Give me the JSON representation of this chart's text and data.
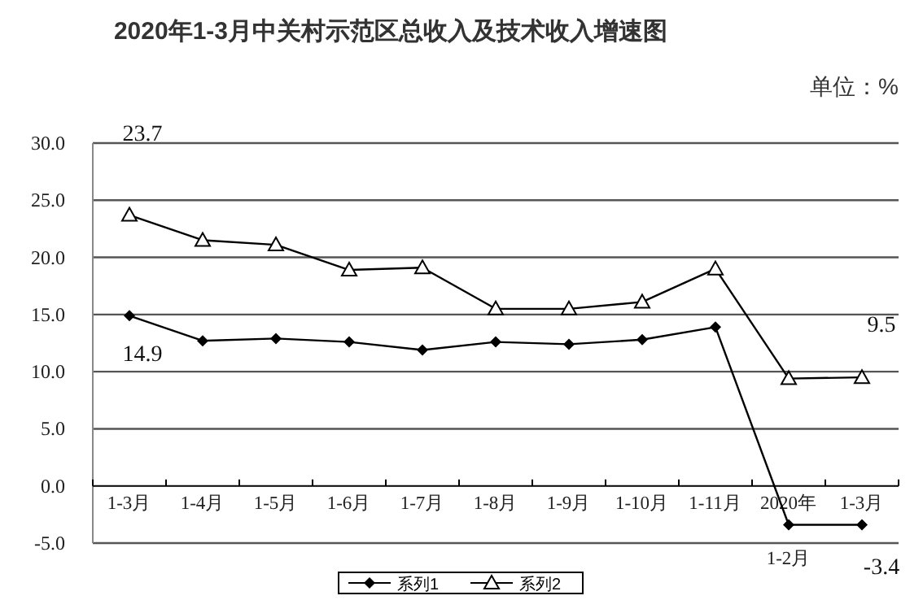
{
  "chart_data": {
    "type": "line",
    "title": "2020年1-3月中关村示范区总收入及技术收入增速图",
    "annotations": [
      "单位：%"
    ],
    "categories": [
      "1-3月",
      "1-4月",
      "1-5月",
      "1-6月",
      "1-7月",
      "1-8月",
      "1-9月",
      "1-10月",
      "1-11月",
      "2020年\n1-2月",
      "1-3月"
    ],
    "series": [
      {
        "name": "系列1",
        "color": "#000000",
        "marker": "diamond",
        "values": [
          14.9,
          12.7,
          12.9,
          12.6,
          11.9,
          12.6,
          12.4,
          12.8,
          13.9,
          -3.4,
          -3.4
        ],
        "value_labels": [
          "14.9",
          null,
          null,
          null,
          null,
          null,
          null,
          null,
          null,
          null,
          "-3.4"
        ]
      },
      {
        "name": "系列2",
        "color": "#000000",
        "marker": "triangle",
        "values": [
          23.7,
          21.5,
          21.1,
          18.9,
          19.1,
          15.5,
          15.5,
          16.1,
          19.0,
          9.4,
          9.5
        ],
        "value_labels": [
          "23.7",
          null,
          null,
          null,
          null,
          null,
          null,
          null,
          null,
          null,
          "9.5"
        ]
      }
    ],
    "ylim": [
      -5,
      30
    ],
    "yticks": [
      {
        "value": -5,
        "label": "-5.0"
      },
      {
        "value": 0,
        "label": "0.0"
      },
      {
        "value": 5,
        "label": "5.0"
      },
      {
        "value": 10,
        "label": "10.0"
      },
      {
        "value": 15,
        "label": "15.0"
      },
      {
        "value": 20,
        "label": "20.0"
      },
      {
        "value": 25,
        "label": "25.0"
      },
      {
        "value": 30,
        "label": "30.0"
      }
    ],
    "grid": "y",
    "legend": "bottom"
  }
}
